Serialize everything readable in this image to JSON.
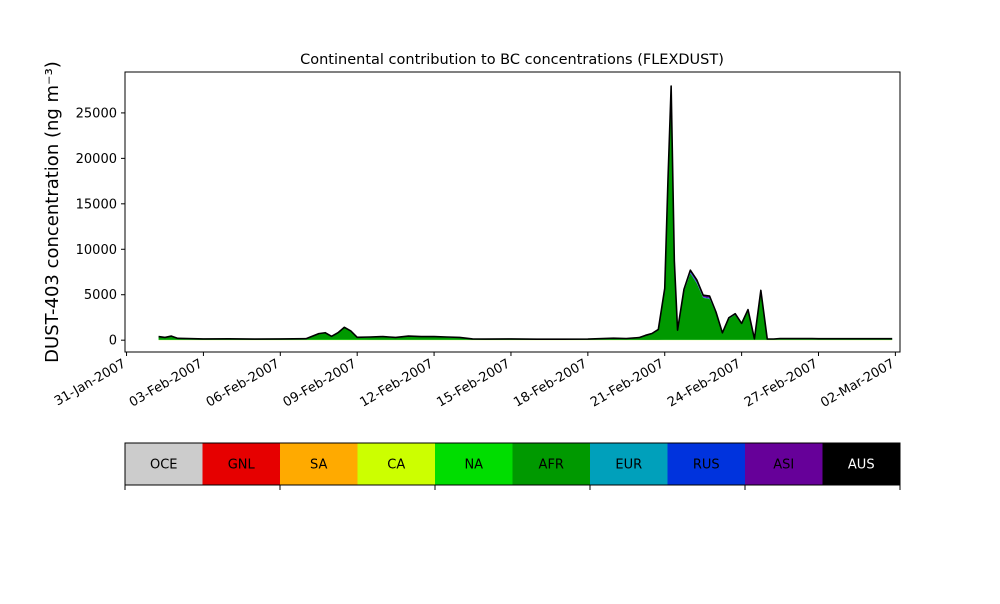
{
  "chart_data": {
    "type": "area",
    "title": "Continental contribution to BC concentrations (FLEXDUST)",
    "ylabel": "DUST-403 concentration (ng m⁻³)",
    "xlabel": "",
    "ylim": [
      -1300,
      29500
    ],
    "xlim": [
      "2007-01-31",
      "2007-03-02"
    ],
    "grid": false,
    "y_ticks": [
      0,
      5000,
      10000,
      15000,
      20000,
      25000
    ],
    "y_tick_labels": [
      "0",
      "5000",
      "10000",
      "15000",
      "20000",
      "25000"
    ],
    "x_ticks": [
      "2007-01-31",
      "2007-02-03",
      "2007-02-06",
      "2007-02-09",
      "2007-02-12",
      "2007-02-15",
      "2007-02-18",
      "2007-02-21",
      "2007-02-24",
      "2007-02-27",
      "2007-03-02"
    ],
    "x_tick_labels": [
      "31-Jan-2007",
      "03-Feb-2007",
      "06-Feb-2007",
      "09-Feb-2007",
      "12-Feb-2007",
      "15-Feb-2007",
      "18-Feb-2007",
      "21-Feb-2007",
      "24-Feb-2007",
      "27-Feb-2007",
      "02-Mar-2007"
    ],
    "x": [
      "2007-02-01 06:00",
      "2007-02-01 12:00",
      "2007-02-01 18:00",
      "2007-02-02 00:00",
      "2007-02-03 00:00",
      "2007-02-04 00:00",
      "2007-02-05 00:00",
      "2007-02-06 00:00",
      "2007-02-07 00:00",
      "2007-02-07 12:00",
      "2007-02-07 18:00",
      "2007-02-08 00:00",
      "2007-02-08 06:00",
      "2007-02-08 12:00",
      "2007-02-08 18:00",
      "2007-02-09 00:00",
      "2007-02-09 12:00",
      "2007-02-10 00:00",
      "2007-02-10 06:00",
      "2007-02-10 12:00",
      "2007-02-11 00:00",
      "2007-02-11 12:00",
      "2007-02-12 00:00",
      "2007-02-12 12:00",
      "2007-02-13 00:00",
      "2007-02-13 12:00",
      "2007-02-14 00:00",
      "2007-02-15 00:00",
      "2007-02-16 00:00",
      "2007-02-17 00:00",
      "2007-02-18 00:00",
      "2007-02-19 00:00",
      "2007-02-19 12:00",
      "2007-02-20 00:00",
      "2007-02-20 06:00",
      "2007-02-20 12:00",
      "2007-02-20 18:00",
      "2007-02-21 00:00",
      "2007-02-21 03:00",
      "2007-02-21 06:00",
      "2007-02-21 09:00",
      "2007-02-21 12:00",
      "2007-02-21 18:00",
      "2007-02-22 00:00",
      "2007-02-22 06:00",
      "2007-02-22 12:00",
      "2007-02-22 18:00",
      "2007-02-23 00:00",
      "2007-02-23 06:00",
      "2007-02-23 12:00",
      "2007-02-23 18:00",
      "2007-02-24 00:00",
      "2007-02-24 06:00",
      "2007-02-24 12:00",
      "2007-02-24 18:00",
      "2007-02-25 00:00",
      "2007-02-25 06:00",
      "2007-02-25 12:00",
      "2007-02-25 18:00",
      "2007-02-26 00:00",
      "2007-02-26 03:00",
      "2007-02-26 06:00",
      "2007-02-26 12:00",
      "2007-02-26 18:00",
      "2007-02-27 00:00",
      "2007-02-27 12:00",
      "2007-02-28 00:00",
      "2007-03-01 00:00",
      "2007-03-01 12:00",
      "2007-03-01 18:00",
      "2007-03-01 21:00"
    ],
    "series": [
      {
        "name": "OCE",
        "color": "#cccccc",
        "values": [
          0,
          0,
          0,
          0,
          0,
          0,
          0,
          0,
          0,
          0,
          0,
          0,
          0,
          0,
          0,
          0,
          0,
          0,
          0,
          0,
          0,
          0,
          0,
          0,
          0,
          0,
          0,
          0,
          0,
          0,
          0,
          0,
          0,
          0,
          0,
          0,
          0,
          0,
          0,
          0,
          0,
          0,
          0,
          0,
          0,
          0,
          0,
          0,
          0,
          0,
          0,
          0,
          0,
          0,
          0,
          0,
          0,
          0,
          0,
          0,
          0,
          0,
          0,
          0,
          0,
          0,
          0,
          0,
          0,
          0,
          0
        ]
      },
      {
        "name": "GNL",
        "color": "#e60000",
        "values": [
          0,
          0,
          0,
          0,
          0,
          0,
          0,
          0,
          0,
          0,
          0,
          0,
          0,
          0,
          0,
          0,
          0,
          0,
          0,
          0,
          0,
          0,
          0,
          0,
          0,
          0,
          0,
          0,
          0,
          0,
          0,
          0,
          0,
          0,
          0,
          0,
          0,
          0,
          0,
          0,
          0,
          0,
          0,
          0,
          0,
          0,
          0,
          0,
          0,
          0,
          0,
          0,
          0,
          0,
          0,
          0,
          0,
          0,
          0,
          0,
          0,
          0,
          0,
          0,
          0,
          0,
          0,
          0,
          0,
          0,
          0
        ]
      },
      {
        "name": "SA",
        "color": "#ffaa00",
        "values": [
          0,
          0,
          0,
          0,
          0,
          0,
          0,
          0,
          0,
          0,
          0,
          0,
          0,
          0,
          0,
          0,
          0,
          0,
          0,
          0,
          0,
          0,
          0,
          0,
          0,
          0,
          0,
          0,
          0,
          0,
          0,
          0,
          0,
          0,
          0,
          0,
          0,
          0,
          0,
          0,
          0,
          0,
          0,
          0,
          0,
          0,
          0,
          0,
          0,
          0,
          0,
          0,
          0,
          0,
          0,
          0,
          0,
          0,
          0,
          0,
          0,
          0,
          0,
          0,
          0,
          0,
          0,
          0,
          0,
          0,
          0
        ]
      },
      {
        "name": "CA",
        "color": "#ccff00",
        "values": [
          20,
          20,
          20,
          20,
          15,
          15,
          15,
          15,
          20,
          30,
          30,
          30,
          30,
          30,
          30,
          30,
          20,
          20,
          20,
          20,
          20,
          20,
          20,
          20,
          20,
          15,
          15,
          15,
          15,
          15,
          15,
          15,
          15,
          15,
          15,
          15,
          15,
          20,
          20,
          20,
          20,
          20,
          20,
          20,
          20,
          20,
          20,
          20,
          20,
          20,
          20,
          20,
          20,
          20,
          20,
          20,
          20,
          20,
          20,
          20,
          20,
          20,
          20,
          20,
          15,
          15,
          15,
          15,
          15,
          15,
          15
        ]
      },
      {
        "name": "NA",
        "color": "#00dd00",
        "values": [
          30,
          30,
          30,
          30,
          20,
          20,
          20,
          20,
          30,
          40,
          40,
          40,
          40,
          40,
          40,
          40,
          30,
          30,
          30,
          30,
          30,
          30,
          30,
          30,
          30,
          20,
          20,
          20,
          20,
          20,
          20,
          20,
          20,
          20,
          20,
          20,
          20,
          30,
          30,
          30,
          30,
          30,
          30,
          30,
          30,
          30,
          30,
          30,
          30,
          30,
          30,
          30,
          30,
          30,
          30,
          30,
          30,
          30,
          30,
          30,
          30,
          30,
          30,
          30,
          20,
          20,
          20,
          20,
          20,
          20,
          20
        ]
      },
      {
        "name": "AFR",
        "color": "#009900",
        "values": [
          300,
          200,
          350,
          100,
          50,
          60,
          40,
          50,
          60,
          600,
          700,
          300,
          700,
          1300,
          900,
          200,
          250,
          300,
          250,
          200,
          350,
          300,
          300,
          250,
          200,
          50,
          40,
          50,
          30,
          30,
          40,
          130,
          100,
          200,
          450,
          650,
          1100,
          5500,
          17000,
          27500,
          8500,
          1000,
          5300,
          7300,
          6200,
          4600,
          4500,
          2900,
          700,
          2300,
          2750,
          1700,
          3200,
          50,
          5300,
          30,
          30,
          80,
          80,
          80,
          80,
          80,
          80,
          80,
          80,
          80,
          80,
          80,
          80,
          80,
          80
        ]
      },
      {
        "name": "EUR",
        "color": "#00a0bb",
        "values": [
          20,
          20,
          20,
          20,
          20,
          20,
          20,
          20,
          20,
          20,
          20,
          20,
          20,
          20,
          20,
          20,
          20,
          20,
          20,
          20,
          20,
          20,
          20,
          20,
          20,
          20,
          20,
          20,
          20,
          20,
          20,
          20,
          20,
          20,
          20,
          20,
          20,
          30,
          50,
          60,
          30,
          20,
          40,
          50,
          50,
          40,
          40,
          30,
          20,
          30,
          30,
          30,
          30,
          20,
          40,
          20,
          20,
          20,
          20,
          20,
          20,
          20,
          20,
          20,
          20,
          20,
          20,
          20,
          20,
          20,
          20
        ]
      },
      {
        "name": "RUS",
        "color": "#0033dd",
        "values": [
          20,
          20,
          20,
          20,
          20,
          20,
          20,
          20,
          20,
          20,
          20,
          20,
          20,
          20,
          20,
          20,
          20,
          20,
          20,
          20,
          20,
          20,
          20,
          20,
          20,
          20,
          20,
          20,
          20,
          20,
          20,
          20,
          20,
          20,
          20,
          20,
          20,
          60,
          200,
          150,
          60,
          20,
          80,
          100,
          90,
          60,
          60,
          40,
          20,
          40,
          40,
          30,
          40,
          20,
          60,
          20,
          20,
          20,
          20,
          20,
          20,
          20,
          20,
          20,
          20,
          20,
          20,
          20,
          20,
          20,
          20
        ]
      },
      {
        "name": "ASI",
        "color": "#660099",
        "values": [
          10,
          10,
          10,
          10,
          10,
          10,
          10,
          10,
          10,
          10,
          10,
          10,
          10,
          10,
          10,
          10,
          10,
          10,
          10,
          10,
          10,
          10,
          10,
          10,
          10,
          10,
          10,
          10,
          10,
          10,
          10,
          10,
          10,
          10,
          10,
          10,
          10,
          60,
          250,
          200,
          80,
          20,
          120,
          200,
          250,
          200,
          200,
          80,
          20,
          40,
          40,
          30,
          40,
          10,
          30,
          10,
          10,
          10,
          10,
          10,
          10,
          10,
          10,
          10,
          10,
          10,
          10,
          10,
          10,
          10,
          10
        ]
      },
      {
        "name": "AUS",
        "color": "#000000",
        "values": [
          0,
          0,
          0,
          0,
          0,
          0,
          0,
          0,
          0,
          0,
          0,
          0,
          0,
          0,
          0,
          0,
          0,
          0,
          0,
          0,
          0,
          0,
          0,
          0,
          0,
          0,
          0,
          0,
          0,
          0,
          0,
          0,
          0,
          0,
          0,
          0,
          0,
          0,
          0,
          0,
          0,
          0,
          0,
          0,
          0,
          0,
          0,
          0,
          0,
          0,
          0,
          0,
          0,
          0,
          0,
          0,
          0,
          0,
          0,
          0,
          0,
          0,
          0,
          0,
          0,
          0,
          0,
          0,
          0,
          0,
          0
        ]
      }
    ],
    "legend": {
      "placement": "bottom",
      "entries": [
        "OCE",
        "GNL",
        "SA",
        "CA",
        "NA",
        "AFR",
        "EUR",
        "RUS",
        "ASI",
        "AUS"
      ],
      "label_colors": [
        "#000000",
        "#000000",
        "#000000",
        "#000000",
        "#000000",
        "#000000",
        "#000000",
        "#000000",
        "#000000",
        "#ffffff"
      ]
    }
  }
}
